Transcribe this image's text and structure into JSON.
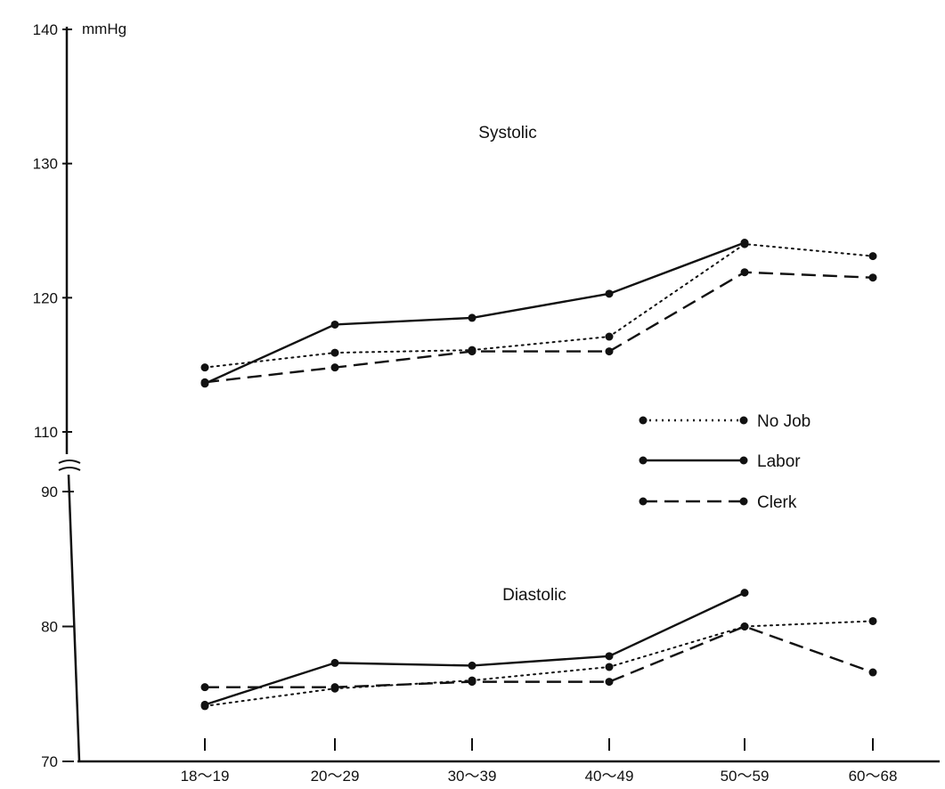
{
  "chart_data": {
    "type": "line",
    "unit_label": "mmHg",
    "categories": [
      "18～19",
      "20～29",
      "30～39",
      "40～49",
      "50～59",
      "60～68"
    ],
    "y_axis_break": [
      110,
      90
    ],
    "yticks_upper": [
      110,
      120,
      130,
      140
    ],
    "yticks_lower": [
      70,
      80,
      90
    ],
    "ylim_upper": [
      110,
      140
    ],
    "ylim_lower": [
      70,
      90
    ],
    "grid": false,
    "legend_position": "right-middle",
    "panels": [
      {
        "title": "Systolic",
        "series": [
          {
            "name": "No Job",
            "values": [
              114.8,
              115.9,
              116.1,
              117.1,
              124.0,
              123.1
            ]
          },
          {
            "name": "Labor",
            "values": [
              113.6,
              118.0,
              118.5,
              120.3,
              124.1,
              null
            ]
          },
          {
            "name": "Clerk",
            "values": [
              113.7,
              114.8,
              116.0,
              116.0,
              121.9,
              121.5
            ]
          }
        ]
      },
      {
        "title": "Diastolic",
        "series": [
          {
            "name": "No Job",
            "values": [
              74.1,
              75.4,
              76.0,
              77.0,
              80.0,
              80.4
            ]
          },
          {
            "name": "Labor",
            "values": [
              74.2,
              77.3,
              77.1,
              77.8,
              82.5,
              null
            ]
          },
          {
            "name": "Clerk",
            "values": [
              75.5,
              75.5,
              75.9,
              75.9,
              80.0,
              76.6
            ]
          }
        ]
      }
    ],
    "legend": [
      {
        "name": "No Job",
        "style": "dotted"
      },
      {
        "name": "Labor",
        "style": "solid"
      },
      {
        "name": "Clerk",
        "style": "dashed"
      }
    ],
    "colors": {
      "line": "#111111",
      "background": "#ffffff"
    }
  }
}
